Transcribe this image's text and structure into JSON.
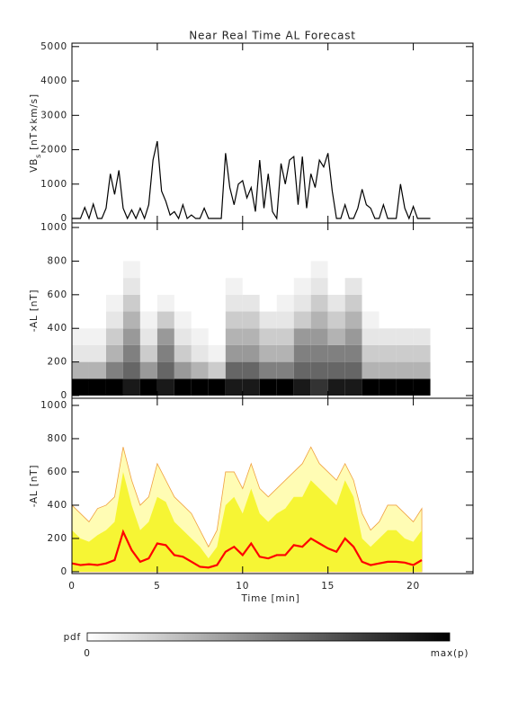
{
  "chart_data": [
    {
      "type": "line",
      "title": "Near Real Time AL Forecast",
      "ylabel": {
        "main": "VB",
        "sub": "s",
        "unit": " [nT×km/s]"
      },
      "color": "#000000",
      "x": [
        0,
        0.25,
        0.5,
        0.75,
        1,
        1.25,
        1.5,
        1.75,
        2,
        2.25,
        2.5,
        2.75,
        3,
        3.25,
        3.5,
        3.75,
        4,
        4.25,
        4.5,
        4.75,
        5,
        5.25,
        5.5,
        5.75,
        6,
        6.25,
        6.5,
        6.75,
        7,
        7.25,
        7.5,
        7.75,
        8,
        8.25,
        8.5,
        8.75,
        9,
        9.25,
        9.5,
        9.75,
        10,
        10.25,
        10.5,
        10.75,
        11,
        11.25,
        11.5,
        11.75,
        12,
        12.25,
        12.5,
        12.75,
        13,
        13.25,
        13.5,
        13.75,
        14,
        14.25,
        14.5,
        14.75,
        15,
        15.25,
        15.5,
        15.75,
        16,
        16.25,
        16.5,
        16.75,
        17,
        17.25,
        17.5,
        17.75,
        18,
        18.25,
        18.5,
        18.75,
        19,
        19.25,
        19.5,
        19.75,
        20,
        20.25,
        20.5,
        20.75,
        21
      ],
      "values": [
        0,
        0,
        0,
        320,
        0,
        420,
        0,
        0,
        300,
        1300,
        700,
        1400,
        300,
        0,
        250,
        0,
        300,
        0,
        400,
        1700,
        2250,
        800,
        500,
        100,
        200,
        0,
        400,
        0,
        100,
        0,
        0,
        300,
        0,
        0,
        0,
        0,
        1900,
        900,
        400,
        1000,
        1100,
        600,
        900,
        200,
        1700,
        300,
        1300,
        200,
        0,
        1600,
        1000,
        1700,
        1800,
        400,
        1800,
        300,
        1300,
        900,
        1700,
        1500,
        1900,
        800,
        0,
        0,
        400,
        0,
        0,
        300,
        850,
        400,
        300,
        0,
        0,
        400,
        0,
        0,
        0,
        1000,
        300,
        0,
        350,
        0,
        0,
        0,
        0
      ],
      "xlim": [
        0,
        23.5
      ],
      "xticks": [
        0,
        5,
        10,
        15,
        20
      ],
      "ylim": [
        -130,
        5100
      ],
      "yticks": [
        0,
        1000,
        2000,
        3000,
        4000,
        5000
      ]
    },
    {
      "type": "heatmap",
      "ylabel": "-AL [nT]",
      "time_bins": [
        0,
        1,
        2,
        3,
        4,
        5,
        6,
        7,
        8,
        9,
        10,
        11,
        12,
        13,
        14,
        15,
        16,
        17,
        18,
        19,
        20,
        21
      ],
      "al_bins": [
        0,
        100,
        200,
        300,
        400,
        500,
        600,
        700,
        800
      ],
      "density": [
        [
          1,
          0.3,
          0.1,
          0.05,
          0,
          0,
          0,
          0
        ],
        [
          1,
          0.3,
          0.1,
          0.05,
          0,
          0,
          0,
          0
        ],
        [
          1,
          0.5,
          0.3,
          0.2,
          0.1,
          0.05,
          0,
          0
        ],
        [
          0.9,
          0.6,
          0.5,
          0.4,
          0.3,
          0.2,
          0.1,
          0.05
        ],
        [
          1,
          0.4,
          0.2,
          0.1,
          0.05,
          0,
          0,
          0
        ],
        [
          0.9,
          0.6,
          0.5,
          0.4,
          0.2,
          0.05,
          0,
          0
        ],
        [
          1,
          0.4,
          0.2,
          0.1,
          0.05,
          0,
          0,
          0
        ],
        [
          1,
          0.3,
          0.1,
          0.05,
          0,
          0,
          0,
          0
        ],
        [
          1,
          0.2,
          0.05,
          0,
          0,
          0,
          0,
          0
        ],
        [
          0.9,
          0.6,
          0.4,
          0.3,
          0.2,
          0.1,
          0.05,
          0
        ],
        [
          0.9,
          0.6,
          0.4,
          0.3,
          0.2,
          0.1,
          0,
          0
        ],
        [
          1,
          0.5,
          0.3,
          0.2,
          0.1,
          0,
          0,
          0
        ],
        [
          1,
          0.5,
          0.3,
          0.2,
          0.1,
          0.05,
          0,
          0
        ],
        [
          0.9,
          0.6,
          0.5,
          0.4,
          0.2,
          0.1,
          0.05,
          0
        ],
        [
          0.8,
          0.6,
          0.5,
          0.4,
          0.3,
          0.2,
          0.1,
          0.05
        ],
        [
          0.9,
          0.6,
          0.5,
          0.3,
          0.2,
          0.1,
          0,
          0
        ],
        [
          0.9,
          0.6,
          0.5,
          0.4,
          0.3,
          0.2,
          0.1,
          0
        ],
        [
          1,
          0.3,
          0.2,
          0.1,
          0.05,
          0,
          0,
          0
        ],
        [
          1,
          0.3,
          0.2,
          0.1,
          0,
          0,
          0,
          0
        ],
        [
          1,
          0.3,
          0.2,
          0.1,
          0,
          0,
          0,
          0
        ],
        [
          1,
          0.3,
          0.2,
          0.1,
          0,
          0,
          0,
          0
        ]
      ],
      "colorbar": {
        "label": "pdf",
        "min_label": "0",
        "max_label": "max(p)"
      },
      "xlim": [
        0,
        23.5
      ],
      "xticks": [
        0,
        5,
        10,
        15,
        20
      ],
      "ylim": [
        -16,
        1027
      ],
      "yticks": [
        0,
        200,
        400,
        600,
        800,
        1000
      ]
    },
    {
      "type": "band",
      "ylabel": "-AL [nT]",
      "xlabel": "Time [min]",
      "x": [
        0,
        0.5,
        1,
        1.5,
        2,
        2.5,
        3,
        3.5,
        4,
        4.5,
        5,
        5.5,
        6,
        6.5,
        7,
        7.5,
        8,
        8.5,
        9,
        9.5,
        10,
        10.5,
        11,
        11.5,
        12,
        12.5,
        13,
        13.5,
        14,
        14.5,
        15,
        15.5,
        16,
        16.5,
        17,
        17.5,
        18,
        18.5,
        19,
        19.5,
        20,
        20.5
      ],
      "series": [
        {
          "color": "#fffcb4",
          "edge": "#f0a040",
          "values": [
            400,
            350,
            300,
            380,
            400,
            450,
            750,
            550,
            400,
            450,
            650,
            550,
            450,
            400,
            350,
            250,
            150,
            250,
            600,
            600,
            500,
            650,
            500,
            450,
            500,
            550,
            600,
            650,
            750,
            650,
            600,
            550,
            650,
            550,
            350,
            250,
            300,
            400,
            400,
            350,
            300,
            380
          ]
        },
        {
          "color": "#f6f534",
          "values": [
            250,
            200,
            180,
            220,
            250,
            300,
            600,
            400,
            250,
            300,
            450,
            420,
            300,
            250,
            200,
            150,
            80,
            150,
            400,
            450,
            350,
            500,
            350,
            300,
            350,
            380,
            450,
            450,
            550,
            500,
            450,
            400,
            550,
            450,
            200,
            150,
            200,
            250,
            250,
            200,
            180,
            250
          ]
        },
        {
          "color": "#ff0000",
          "values": [
            50,
            40,
            45,
            40,
            50,
            70,
            240,
            130,
            60,
            80,
            170,
            160,
            100,
            90,
            60,
            30,
            25,
            40,
            120,
            150,
            100,
            170,
            90,
            80,
            100,
            100,
            160,
            150,
            200,
            170,
            140,
            120,
            200,
            150,
            60,
            40,
            50,
            60,
            60,
            55,
            40,
            70
          ]
        }
      ],
      "xlim": [
        0,
        23.5
      ],
      "xticks": [
        0,
        5,
        10,
        15,
        20
      ],
      "ylim": [
        -11,
        1043
      ],
      "yticks": [
        0,
        200,
        400,
        600,
        800,
        1000
      ]
    }
  ]
}
